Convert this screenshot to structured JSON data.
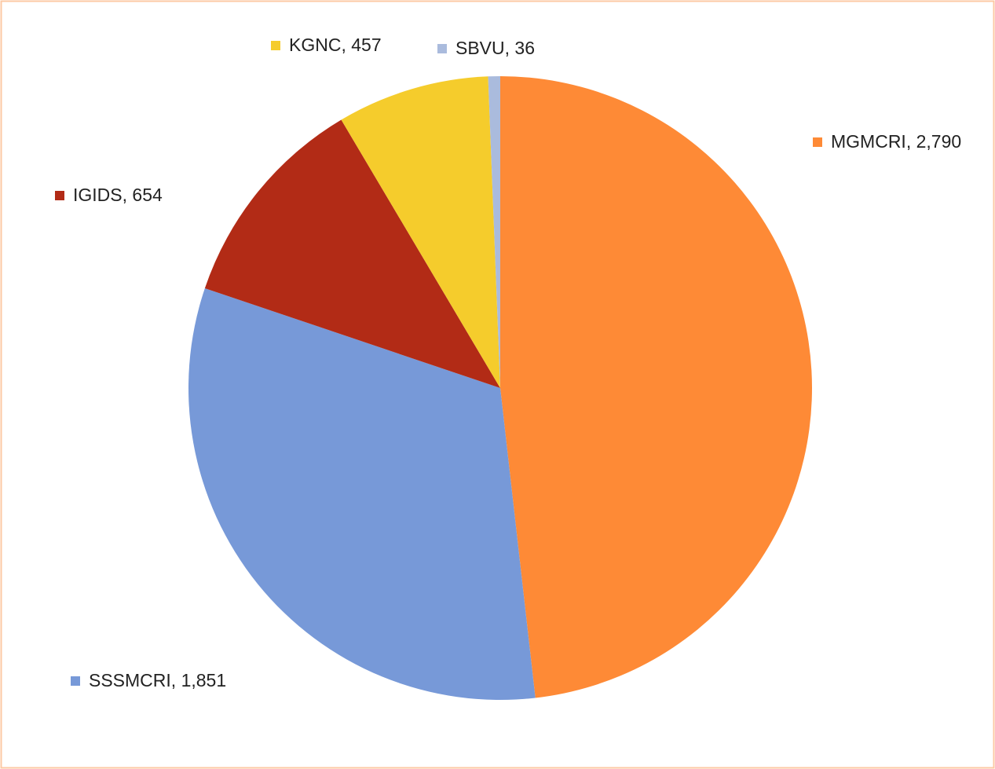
{
  "chart_data": {
    "type": "pie",
    "values": [
      2790,
      1851,
      654,
      457,
      36
    ],
    "value_labels": [
      "MGMCRI, 2,790",
      "SSSMCRI, 1,851",
      "IGIDS, 654",
      "KGNC, 457",
      "SBVU, 36"
    ],
    "colors": [
      "#fe8a36",
      "#7799d8",
      "#b22b16",
      "#f5cc2c",
      "#aabbdd"
    ]
  }
}
